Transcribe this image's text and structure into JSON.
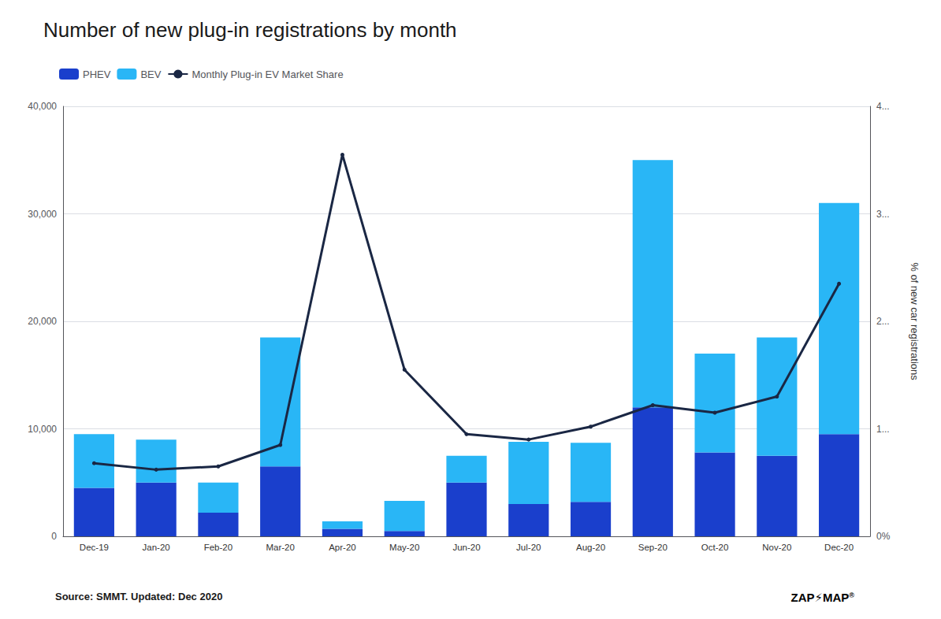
{
  "chart_data": {
    "type": "bar",
    "title": "Number of new plug-in registrations by month",
    "categories": [
      "Dec-19",
      "Jan-20",
      "Feb-20",
      "Mar-20",
      "Apr-20",
      "May-20",
      "Jun-20",
      "Jul-20",
      "Aug-20",
      "Sep-20",
      "Oct-20",
      "Nov-20",
      "Dec-20"
    ],
    "series": [
      {
        "name": "PHEV",
        "color": "#1a3fcc",
        "values": [
          4500,
          5000,
          2200,
          6500,
          700,
          500,
          5000,
          3000,
          3200,
          12000,
          7800,
          7500,
          9500
        ]
      },
      {
        "name": "BEV",
        "color": "#29b6f6",
        "values": [
          5000,
          4000,
          2800,
          12000,
          700,
          2800,
          2500,
          5800,
          5500,
          23000,
          9200,
          11000,
          21500
        ]
      },
      {
        "name": "Monthly Plug-in EV Market Share",
        "type": "line",
        "axis": "y2",
        "color": "#1a2744",
        "values": [
          0.68,
          0.62,
          0.65,
          0.85,
          3.55,
          1.55,
          0.95,
          0.9,
          1.02,
          1.22,
          1.15,
          1.3,
          2.35
        ]
      }
    ],
    "stacked": true,
    "ylim": [
      0,
      40000
    ],
    "yticks": [
      0,
      {
        "value": 10000,
        "label": "10,000"
      },
      {
        "value": 20000,
        "label": "20,000"
      },
      {
        "value": 30000,
        "label": "30,000"
      },
      {
        "value": 40000,
        "label": "40,000"
      }
    ],
    "y2lim": [
      0,
      4.0
    ],
    "y2ticks": [
      {
        "value": 0,
        "label": "0%"
      },
      {
        "value": 1,
        "label": "1..."
      },
      {
        "value": 2,
        "label": "2..."
      },
      {
        "value": 3,
        "label": "3..."
      },
      {
        "value": 4,
        "label": "4..."
      }
    ],
    "y2label": "% of new car registrations",
    "grid": true,
    "legend": "upper left",
    "annotations": [
      {
        "text": "Source: SMMT. Updated: Dec 2020"
      },
      {
        "text": "ZAP"
      },
      {
        "text": "⚡",
        "color": "#ff6600"
      },
      {
        "text": "MAP"
      },
      {
        "text": "®"
      }
    ]
  }
}
